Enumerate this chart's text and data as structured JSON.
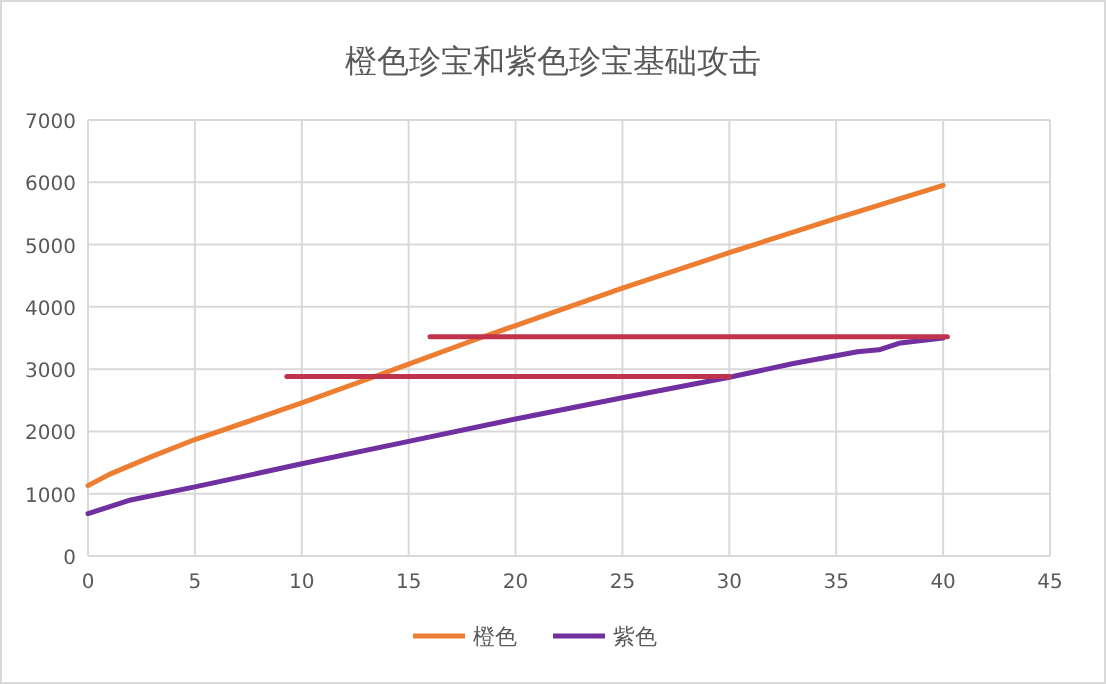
{
  "chart_data": {
    "type": "line",
    "title": "橙色珍宝和紫色珍宝基础攻击",
    "xlim": [
      0,
      45
    ],
    "xticks": [
      0,
      5,
      10,
      15,
      20,
      25,
      30,
      35,
      40,
      45
    ],
    "ylim": [
      0,
      7000
    ],
    "yticks": [
      0,
      1000,
      2000,
      3000,
      4000,
      5000,
      6000,
      7000
    ],
    "grid": true,
    "legend": "bottom",
    "marker": "none",
    "line_style": "solid",
    "series": [
      {
        "name": "橙色",
        "color": "#ed7d31",
        "x": [
          0,
          1,
          3,
          5,
          8,
          10,
          13,
          15,
          18,
          20,
          25,
          30,
          35,
          40
        ],
        "values": [
          1130,
          1310,
          1600,
          1870,
          2220,
          2460,
          2830,
          3080,
          3460,
          3700,
          4300,
          4870,
          5420,
          5950
        ]
      },
      {
        "name": "紫色",
        "color": "#7030a0",
        "x": [
          0,
          2,
          5,
          10,
          15,
          20,
          25,
          30,
          33,
          36,
          37,
          38,
          40
        ],
        "values": [
          680,
          900,
          1110,
          1480,
          1840,
          2200,
          2540,
          2870,
          3090,
          3280,
          3310,
          3420,
          3500
        ]
      },
      {
        "color": "#c0334d",
        "x": [
          16,
          40.2
        ],
        "values": [
          3520,
          3520
        ]
      },
      {
        "color": "#c0334d",
        "x": [
          9.3,
          30
        ],
        "values": [
          2880,
          2880
        ]
      }
    ]
  }
}
